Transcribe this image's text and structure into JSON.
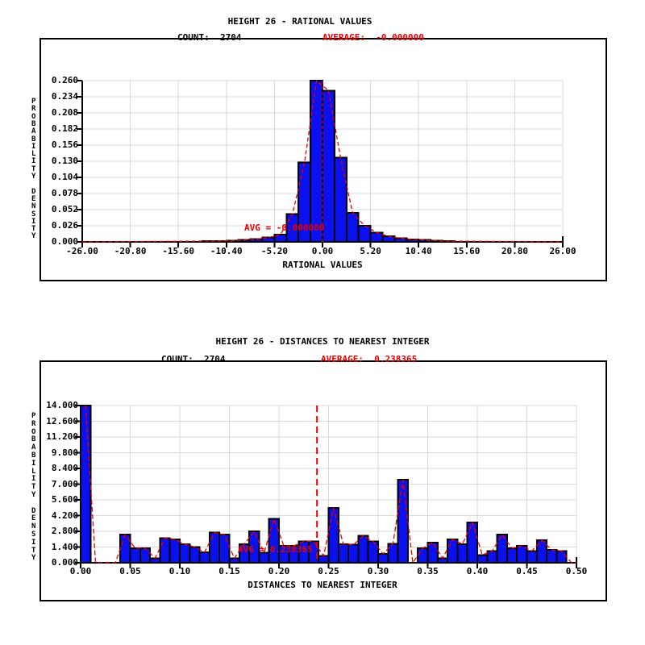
{
  "colors": {
    "background": "#ffffff",
    "bar_fill": "#0a10ee",
    "bar_outline": "#000000",
    "curve_red": "#e80000",
    "accent_red": "#e80000",
    "grid": "#d9d9d9",
    "axis": "#000000",
    "text": "#000000"
  },
  "chart_data": [
    {
      "type": "bar",
      "subtype": "histogram with red density polygon overlay and dashed mean line",
      "title": "HEIGHT 26 - RATIONAL VALUES",
      "count_label": "COUNT:  2704",
      "average_label": "AVERAGE:  -0.000000",
      "avg_annotation": "AVG = -0.000000",
      "average_value": 0.0,
      "xlabel": "RATIONAL VALUES",
      "ylabel": "PROBABILITY DENSITY",
      "xlim": [
        -26,
        26
      ],
      "ylim": [
        0,
        0.26
      ],
      "grid": true,
      "legend": "none",
      "x_tick_labels": [
        "-26.00",
        "-20.80",
        "-15.60",
        "-10.40",
        "-5.20",
        "0.00",
        "5.20",
        "10.40",
        "15.60",
        "20.80",
        "26.00"
      ],
      "y_tick_labels": [
        "0.260",
        "0.234",
        "0.208",
        "0.182",
        "0.156",
        "0.130",
        "0.104",
        "0.078",
        "0.052",
        "0.026",
        "0.000"
      ],
      "bins": {
        "start": -13.0,
        "width": 1.3
      },
      "values": [
        0.0013,
        0.0016,
        0.002,
        0.003,
        0.0045,
        0.007,
        0.012,
        0.045,
        0.128,
        0.26,
        0.244,
        0.136,
        0.047,
        0.026,
        0.015,
        0.009,
        0.006,
        0.004,
        0.003,
        0.002,
        0.0013
      ],
      "baseline_extend": true
    },
    {
      "type": "bar",
      "subtype": "histogram with red density polygon overlay and dashed mean line",
      "title": "HEIGHT 26 - DISTANCES TO NEAREST INTEGER",
      "count_label": "COUNT:  2704",
      "average_label": "AVERAGE:  0.238365",
      "avg_annotation": "AVG = 0.238365",
      "average_value": 0.238365,
      "xlabel": "DISTANCES TO NEAREST INTEGER",
      "ylabel": "PROBABILITY DENSITY",
      "xlim": [
        0,
        0.5
      ],
      "ylim": [
        0,
        14
      ],
      "grid": true,
      "legend": "none",
      "x_tick_labels": [
        "0.00",
        "0.05",
        "0.10",
        "0.15",
        "0.20",
        "0.25",
        "0.30",
        "0.35",
        "0.40",
        "0.45",
        "0.50"
      ],
      "y_tick_labels": [
        "14.000",
        "12.600",
        "11.200",
        "9.800",
        "8.400",
        "7.000",
        "5.600",
        "4.200",
        "2.800",
        "1.400",
        "0.000"
      ],
      "bins": {
        "start": 0.0,
        "width": 0.01
      },
      "values": [
        14.0,
        0,
        0,
        0,
        2.5,
        1.3,
        1.3,
        0.4,
        2.2,
        2.1,
        1.65,
        1.4,
        0.95,
        2.7,
        2.5,
        0.4,
        1.65,
        2.8,
        0.9,
        3.9,
        1.5,
        1.5,
        1.9,
        1.9,
        0.6,
        4.9,
        1.65,
        1.6,
        2.4,
        1.9,
        0.8,
        1.7,
        7.4,
        0,
        1.3,
        1.8,
        0.4,
        2.1,
        1.65,
        3.6,
        0.7,
        1.05,
        2.5,
        1.3,
        1.5,
        1.05,
        2.0,
        1.15,
        1.05,
        0
      ],
      "baseline_extend": false
    }
  ]
}
